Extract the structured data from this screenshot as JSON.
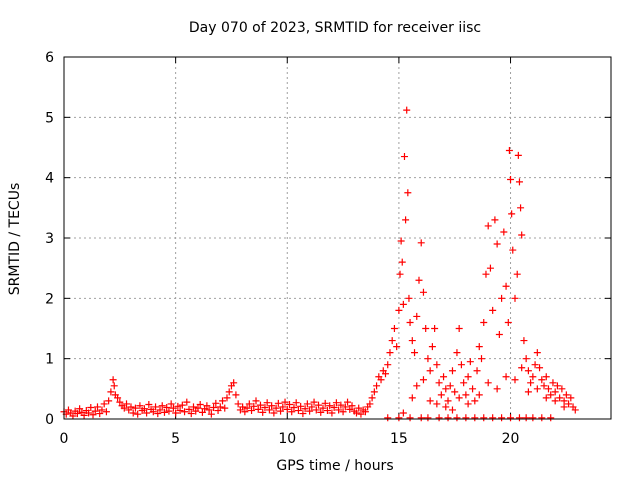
{
  "chart_data": {
    "type": "scatter",
    "title": "Day 070 of 2023, SRMTID for receiver iisc",
    "xlabel": "GPS time / hours",
    "ylabel": "SRMTID / TECUs",
    "xlim": [
      0,
      24.5
    ],
    "ylim": [
      0,
      6
    ],
    "xticks": [
      0,
      5,
      10,
      15,
      20
    ],
    "yticks": [
      0,
      1,
      2,
      3,
      4,
      5,
      6
    ],
    "grid": true,
    "marker": "+",
    "color": "#ff0000",
    "series": [
      {
        "name": "SRMTID",
        "points": [
          [
            0.0,
            0.12
          ],
          [
            0.1,
            0.08
          ],
          [
            0.2,
            0.15
          ],
          [
            0.3,
            0.1
          ],
          [
            0.4,
            0.05
          ],
          [
            0.5,
            0.13
          ],
          [
            0.6,
            0.09
          ],
          [
            0.7,
            0.17
          ],
          [
            0.8,
            0.11
          ],
          [
            0.9,
            0.06
          ],
          [
            1.0,
            0.14
          ],
          [
            1.1,
            0.1
          ],
          [
            1.2,
            0.19
          ],
          [
            1.3,
            0.07
          ],
          [
            1.4,
            0.13
          ],
          [
            1.5,
            0.2
          ],
          [
            1.6,
            0.09
          ],
          [
            1.7,
            0.15
          ],
          [
            1.8,
            0.25
          ],
          [
            1.9,
            0.12
          ],
          [
            2.0,
            0.3
          ],
          [
            2.1,
            0.45
          ],
          [
            2.2,
            0.65
          ],
          [
            2.25,
            0.55
          ],
          [
            2.3,
            0.4
          ],
          [
            2.4,
            0.35
          ],
          [
            2.5,
            0.28
          ],
          [
            2.6,
            0.22
          ],
          [
            2.7,
            0.18
          ],
          [
            2.8,
            0.25
          ],
          [
            2.9,
            0.15
          ],
          [
            3.0,
            0.2
          ],
          [
            3.1,
            0.1
          ],
          [
            3.2,
            0.18
          ],
          [
            3.3,
            0.08
          ],
          [
            3.4,
            0.22
          ],
          [
            3.5,
            0.14
          ],
          [
            3.6,
            0.17
          ],
          [
            3.7,
            0.1
          ],
          [
            3.8,
            0.24
          ],
          [
            3.9,
            0.16
          ],
          [
            4.0,
            0.12
          ],
          [
            4.1,
            0.2
          ],
          [
            4.2,
            0.09
          ],
          [
            4.3,
            0.15
          ],
          [
            4.4,
            0.22
          ],
          [
            4.5,
            0.11
          ],
          [
            4.6,
            0.19
          ],
          [
            4.7,
            0.13
          ],
          [
            4.8,
            0.25
          ],
          [
            4.9,
            0.18
          ],
          [
            5.0,
            0.1
          ],
          [
            5.1,
            0.21
          ],
          [
            5.2,
            0.14
          ],
          [
            5.3,
            0.23
          ],
          [
            5.4,
            0.12
          ],
          [
            5.5,
            0.28
          ],
          [
            5.6,
            0.16
          ],
          [
            5.7,
            0.09
          ],
          [
            5.8,
            0.2
          ],
          [
            5.9,
            0.13
          ],
          [
            6.0,
            0.18
          ],
          [
            6.1,
            0.24
          ],
          [
            6.2,
            0.11
          ],
          [
            6.3,
            0.17
          ],
          [
            6.4,
            0.22
          ],
          [
            6.5,
            0.15
          ],
          [
            6.6,
            0.08
          ],
          [
            6.7,
            0.19
          ],
          [
            6.8,
            0.26
          ],
          [
            6.9,
            0.14
          ],
          [
            7.0,
            0.2
          ],
          [
            7.1,
            0.3
          ],
          [
            7.2,
            0.18
          ],
          [
            7.3,
            0.35
          ],
          [
            7.4,
            0.45
          ],
          [
            7.5,
            0.55
          ],
          [
            7.6,
            0.6
          ],
          [
            7.7,
            0.4
          ],
          [
            7.8,
            0.25
          ],
          [
            7.9,
            0.15
          ],
          [
            8.0,
            0.2
          ],
          [
            8.1,
            0.12
          ],
          [
            8.2,
            0.18
          ],
          [
            8.3,
            0.25
          ],
          [
            8.4,
            0.14
          ],
          [
            8.5,
            0.21
          ],
          [
            8.6,
            0.3
          ],
          [
            8.7,
            0.16
          ],
          [
            8.8,
            0.23
          ],
          [
            8.9,
            0.11
          ],
          [
            9.0,
            0.19
          ],
          [
            9.1,
            0.27
          ],
          [
            9.2,
            0.15
          ],
          [
            9.3,
            0.22
          ],
          [
            9.4,
            0.1
          ],
          [
            9.5,
            0.18
          ],
          [
            9.6,
            0.26
          ],
          [
            9.7,
            0.13
          ],
          [
            9.8,
            0.2
          ],
          [
            9.9,
            0.28
          ],
          [
            10.0,
            0.16
          ],
          [
            10.1,
            0.24
          ],
          [
            10.2,
            0.12
          ],
          [
            10.3,
            0.19
          ],
          [
            10.4,
            0.27
          ],
          [
            10.5,
            0.14
          ],
          [
            10.6,
            0.21
          ],
          [
            10.7,
            0.09
          ],
          [
            10.8,
            0.17
          ],
          [
            10.9,
            0.25
          ],
          [
            11.0,
            0.13
          ],
          [
            11.1,
            0.2
          ],
          [
            11.2,
            0.28
          ],
          [
            11.3,
            0.15
          ],
          [
            11.4,
            0.23
          ],
          [
            11.5,
            0.11
          ],
          [
            11.6,
            0.18
          ],
          [
            11.7,
            0.26
          ],
          [
            11.8,
            0.14
          ],
          [
            11.9,
            0.22
          ],
          [
            12.0,
            0.1
          ],
          [
            12.1,
            0.19
          ],
          [
            12.2,
            0.27
          ],
          [
            12.3,
            0.15
          ],
          [
            12.4,
            0.23
          ],
          [
            12.5,
            0.12
          ],
          [
            12.6,
            0.2
          ],
          [
            12.7,
            0.28
          ],
          [
            12.8,
            0.16
          ],
          [
            12.9,
            0.22
          ],
          [
            13.0,
            0.13
          ],
          [
            13.1,
            0.1
          ],
          [
            13.2,
            0.18
          ],
          [
            13.3,
            0.08
          ],
          [
            13.4,
            0.15
          ],
          [
            13.5,
            0.12
          ],
          [
            13.6,
            0.2
          ],
          [
            13.7,
            0.25
          ],
          [
            13.8,
            0.35
          ],
          [
            13.9,
            0.45
          ],
          [
            14.0,
            0.55
          ],
          [
            14.1,
            0.7
          ],
          [
            14.2,
            0.65
          ],
          [
            14.3,
            0.8
          ],
          [
            14.4,
            0.75
          ],
          [
            14.5,
            0.9
          ],
          [
            14.6,
            1.1
          ],
          [
            14.7,
            1.3
          ],
          [
            14.8,
            1.5
          ],
          [
            14.9,
            1.2
          ],
          [
            15.0,
            1.8
          ],
          [
            15.05,
            2.4
          ],
          [
            15.1,
            2.95
          ],
          [
            15.15,
            2.6
          ],
          [
            15.2,
            1.9
          ],
          [
            15.25,
            4.35
          ],
          [
            15.3,
            3.3
          ],
          [
            15.35,
            5.12
          ],
          [
            15.4,
            3.75
          ],
          [
            15.45,
            2.0
          ],
          [
            15.5,
            1.6
          ],
          [
            15.6,
            1.3
          ],
          [
            15.7,
            1.1
          ],
          [
            15.8,
            1.7
          ],
          [
            15.9,
            2.3
          ],
          [
            16.0,
            2.92
          ],
          [
            16.1,
            2.1
          ],
          [
            16.2,
            1.5
          ],
          [
            16.3,
            1.0
          ],
          [
            16.4,
            0.8
          ],
          [
            16.5,
            1.2
          ],
          [
            16.6,
            1.5
          ],
          [
            16.7,
            0.9
          ],
          [
            16.8,
            0.6
          ],
          [
            16.9,
            0.4
          ],
          [
            17.0,
            0.7
          ],
          [
            17.1,
            0.5
          ],
          [
            17.2,
            0.3
          ],
          [
            17.3,
            0.55
          ],
          [
            17.4,
            0.8
          ],
          [
            17.5,
            0.45
          ],
          [
            17.6,
            1.1
          ],
          [
            17.7,
            1.5
          ],
          [
            17.8,
            0.9
          ],
          [
            17.9,
            0.6
          ],
          [
            18.0,
            0.4
          ],
          [
            18.1,
            0.7
          ],
          [
            18.2,
            0.95
          ],
          [
            18.3,
            0.5
          ],
          [
            18.4,
            0.3
          ],
          [
            18.5,
            0.8
          ],
          [
            18.6,
            1.2
          ],
          [
            18.7,
            1.0
          ],
          [
            18.8,
            1.6
          ],
          [
            18.9,
            2.4
          ],
          [
            19.0,
            3.2
          ],
          [
            19.1,
            2.5
          ],
          [
            19.2,
            1.8
          ],
          [
            19.3,
            3.3
          ],
          [
            19.4,
            2.9
          ],
          [
            19.5,
            1.4
          ],
          [
            19.6,
            2.0
          ],
          [
            19.7,
            3.1
          ],
          [
            19.8,
            2.2
          ],
          [
            19.9,
            1.6
          ],
          [
            19.95,
            4.45
          ],
          [
            20.0,
            3.97
          ],
          [
            20.05,
            3.4
          ],
          [
            20.1,
            2.8
          ],
          [
            20.2,
            2.0
          ],
          [
            20.3,
            2.4
          ],
          [
            20.35,
            4.37
          ],
          [
            20.4,
            3.93
          ],
          [
            20.45,
            3.5
          ],
          [
            20.5,
            3.05
          ],
          [
            20.6,
            1.3
          ],
          [
            20.7,
            1.0
          ],
          [
            20.8,
            0.8
          ],
          [
            20.9,
            0.6
          ],
          [
            21.0,
            0.7
          ],
          [
            21.1,
            0.9
          ],
          [
            21.2,
            1.1
          ],
          [
            21.3,
            0.85
          ],
          [
            21.4,
            0.65
          ],
          [
            21.5,
            0.55
          ],
          [
            21.6,
            0.7
          ],
          [
            21.7,
            0.5
          ],
          [
            21.8,
            0.4
          ],
          [
            21.9,
            0.6
          ],
          [
            22.0,
            0.45
          ],
          [
            22.1,
            0.55
          ],
          [
            22.2,
            0.35
          ],
          [
            22.3,
            0.5
          ],
          [
            22.4,
            0.3
          ],
          [
            22.5,
            0.4
          ],
          [
            22.6,
            0.25
          ],
          [
            22.7,
            0.35
          ],
          [
            22.8,
            0.2
          ],
          [
            22.9,
            0.15
          ],
          [
            14.5,
            0.02
          ],
          [
            15.0,
            0.02
          ],
          [
            15.2,
            0.1
          ],
          [
            15.5,
            0.02
          ],
          [
            16.0,
            0.02
          ],
          [
            16.3,
            0.02
          ],
          [
            16.8,
            0.02
          ],
          [
            17.2,
            0.02
          ],
          [
            17.6,
            0.02
          ],
          [
            18.0,
            0.02
          ],
          [
            18.4,
            0.02
          ],
          [
            18.8,
            0.02
          ],
          [
            19.2,
            0.02
          ],
          [
            19.6,
            0.02
          ],
          [
            20.0,
            0.02
          ],
          [
            20.4,
            0.02
          ],
          [
            20.7,
            0.02
          ],
          [
            21.0,
            0.02
          ],
          [
            21.4,
            0.02
          ],
          [
            21.8,
            0.02
          ],
          [
            15.6,
            0.35
          ],
          [
            15.8,
            0.55
          ],
          [
            16.1,
            0.65
          ],
          [
            16.4,
            0.3
          ],
          [
            16.7,
            0.25
          ],
          [
            17.1,
            0.2
          ],
          [
            17.4,
            0.15
          ],
          [
            17.7,
            0.35
          ],
          [
            18.1,
            0.25
          ],
          [
            18.6,
            0.4
          ],
          [
            19.0,
            0.6
          ],
          [
            19.4,
            0.5
          ],
          [
            19.8,
            0.7
          ],
          [
            20.2,
            0.65
          ],
          [
            20.5,
            0.85
          ],
          [
            20.8,
            0.45
          ],
          [
            21.2,
            0.5
          ],
          [
            21.6,
            0.35
          ],
          [
            22.0,
            0.3
          ],
          [
            22.4,
            0.2
          ]
        ]
      }
    ]
  }
}
